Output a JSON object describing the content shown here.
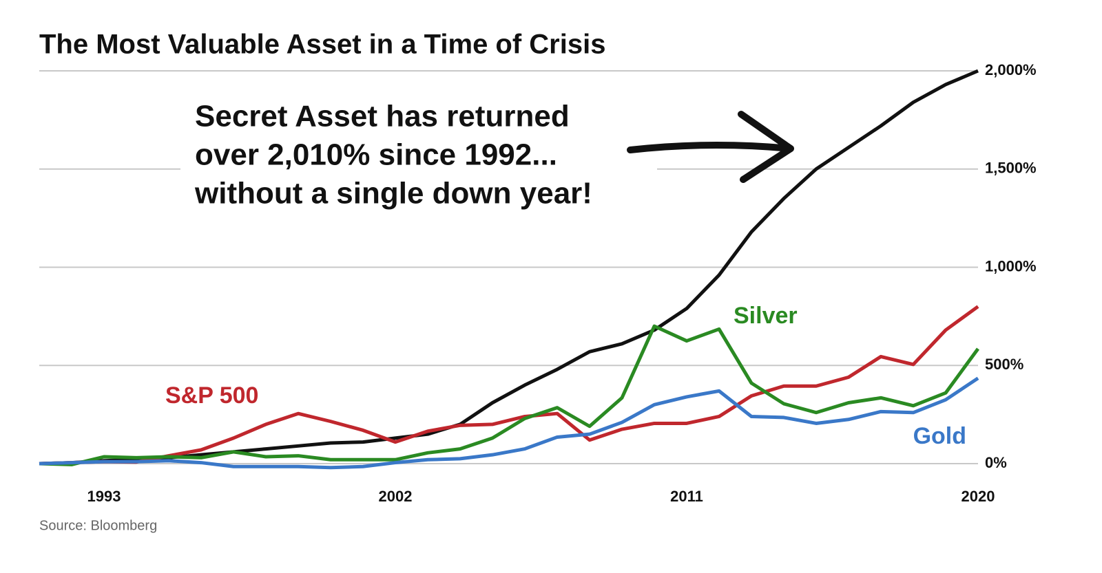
{
  "chart_data": {
    "type": "line",
    "title": "The Most Valuable Asset in a Time of Crisis",
    "annotation": [
      "Secret Asset has returned",
      "over 2,010% since 1992...",
      "without a single down year!"
    ],
    "source": "Source: Bloomberg",
    "x": [
      1991,
      1992,
      1993,
      1994,
      1995,
      1996,
      1997,
      1998,
      1999,
      2000,
      2001,
      2002,
      2003,
      2004,
      2005,
      2006,
      2007,
      2008,
      2009,
      2010,
      2011,
      2012,
      2013,
      2014,
      2015,
      2016,
      2017,
      2018,
      2019,
      2020
    ],
    "xlim": [
      1991,
      2020
    ],
    "xticks": [
      1993,
      2002,
      2011,
      2020
    ],
    "ylim": [
      0,
      2000
    ],
    "yticks": [
      {
        "value": 0,
        "label": "0%"
      },
      {
        "value": 500,
        "label": "500%"
      },
      {
        "value": 1000,
        "label": "1,000%"
      },
      {
        "value": 1500,
        "label": "1,500%"
      },
      {
        "value": 2000,
        "label": "2,000%"
      }
    ],
    "grid": true,
    "series": [
      {
        "color": "#111111",
        "values": [
          0,
          5,
          15,
          20,
          30,
          45,
          60,
          75,
          90,
          105,
          110,
          130,
          150,
          200,
          310,
          400,
          480,
          570,
          610,
          680,
          790,
          960,
          1180,
          1350,
          1500,
          1610,
          1720,
          1840,
          1930,
          2000
        ]
      },
      {
        "name": "S&P 500",
        "color": "#c0272d",
        "values": [
          0,
          5,
          10,
          8,
          40,
          70,
          130,
          200,
          255,
          215,
          170,
          110,
          165,
          195,
          200,
          240,
          255,
          120,
          175,
          205,
          205,
          240,
          345,
          395,
          395,
          440,
          545,
          505,
          680,
          800
        ]
      },
      {
        "name": "Silver",
        "color": "#2a8a22",
        "values": [
          0,
          -5,
          35,
          30,
          35,
          30,
          60,
          35,
          40,
          20,
          20,
          20,
          55,
          75,
          130,
          230,
          285,
          190,
          335,
          700,
          625,
          685,
          410,
          305,
          260,
          310,
          335,
          295,
          360,
          585
        ]
      },
      {
        "name": "Gold",
        "color": "#3a78c8",
        "values": [
          0,
          5,
          10,
          10,
          15,
          5,
          -15,
          -15,
          -15,
          -20,
          -15,
          5,
          20,
          25,
          45,
          75,
          135,
          150,
          210,
          300,
          340,
          370,
          240,
          235,
          205,
          225,
          265,
          260,
          325,
          435
        ]
      }
    ]
  }
}
